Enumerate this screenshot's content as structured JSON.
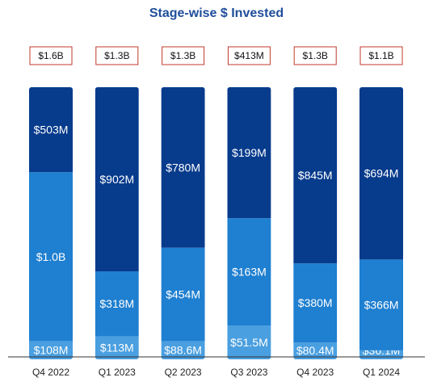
{
  "chart_data": {
    "type": "bar",
    "stacked": true,
    "title": "Stage-wise $ Invested",
    "categories": [
      "Q4 2022",
      "Q1 2023",
      "Q2 2023",
      "Q3 2023",
      "Q4 2023",
      "Q1 2024"
    ],
    "totals": [
      "$1.6B",
      "$1.3B",
      "$1.3B",
      "$413M",
      "$1.3B",
      "$1.1B"
    ],
    "series": [
      {
        "values_musd": [
          108,
          113,
          88.6,
          51.5,
          80.4,
          36.1
        ],
        "labels": [
          "$108M",
          "$113M",
          "$88.6M",
          "$51.5M",
          "$80.4M",
          "$36.1M"
        ],
        "color": "#4a9fe0"
      },
      {
        "values_musd": [
          1000,
          318,
          454,
          163,
          380,
          366
        ],
        "labels": [
          "$1.0B",
          "$318M",
          "$454M",
          "$163M",
          "$380M",
          "$366M"
        ],
        "color": "#1f7fd0"
      },
      {
        "values_musd": [
          503,
          902,
          780,
          199,
          845,
          694
        ],
        "labels": [
          "$503M",
          "$902M",
          "$780M",
          "$199M",
          "$845M",
          "$694M"
        ],
        "color": "#073b8c"
      }
    ],
    "normalized_to_100_percent": true,
    "legend": "none",
    "grid": false
  },
  "colors": {
    "title": "#1f4e9b",
    "total_box_border": "#c0392b",
    "segment_text": "#ffffff",
    "axis": "#333333"
  }
}
